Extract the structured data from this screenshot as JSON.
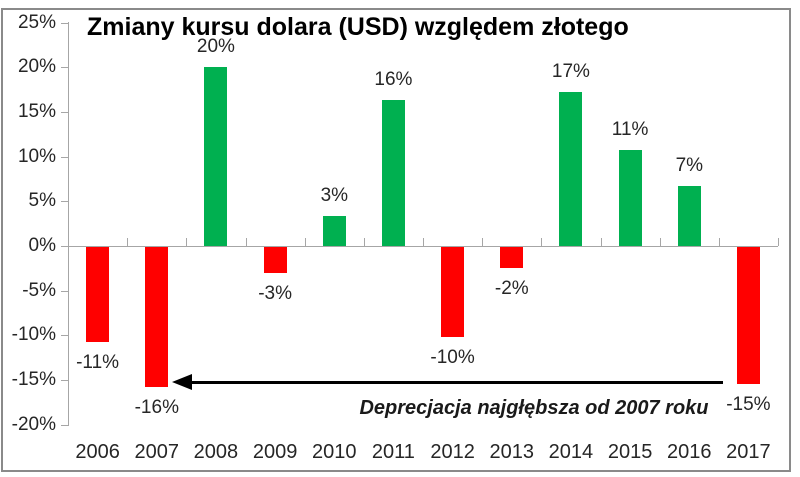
{
  "chart_data": {
    "type": "bar",
    "title": "Zmiany kursu dolara (USD) względem złotego",
    "categories": [
      "2006",
      "2007",
      "2008",
      "2009",
      "2010",
      "2011",
      "2012",
      "2013",
      "2014",
      "2015",
      "2016",
      "2017"
    ],
    "values": [
      -10.6,
      -15.7,
      20.1,
      -2.9,
      3.4,
      16.4,
      -10.1,
      -2.4,
      17.2,
      10.8,
      6.7,
      -15.3
    ],
    "bar_labels": [
      "-11%",
      "-16%",
      "20%",
      "-3%",
      "3%",
      "16%",
      "-10%",
      "-2%",
      "17%",
      "11%",
      "7%",
      "-15%"
    ],
    "y_ticks": [
      "25%",
      "20%",
      "15%",
      "10%",
      "5%",
      "0%",
      "-5%",
      "-10%",
      "-15%",
      "-20%"
    ],
    "ylim": [
      -20,
      25
    ],
    "y_tick_step": 5,
    "xlabel": "",
    "ylabel": "",
    "grid": false,
    "legend": null,
    "annotation": "Deprecjacja najgłębsza od 2007 roku",
    "annotation_arrow": "horizontal arrow pointing left from 2017 bar to 2007 bar at -15% level",
    "colors": {
      "positive_bar": "#00B050",
      "negative_bar": "#FF0000",
      "axis": "#A6A6A6",
      "label_text": "#262626",
      "title_text": "#000000",
      "arrow": "#000000",
      "frame_border": "#8A8A8A"
    }
  }
}
